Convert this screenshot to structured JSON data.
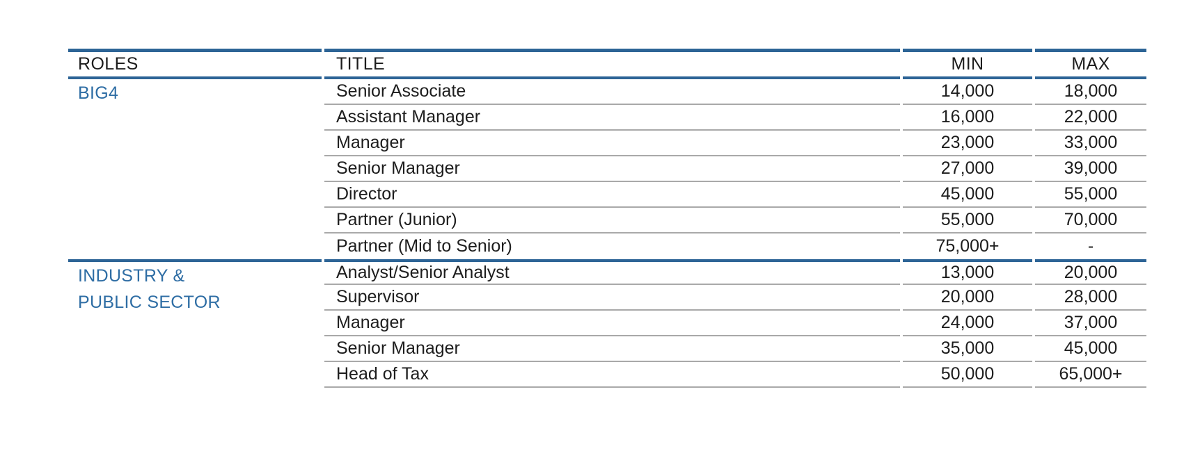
{
  "colors": {
    "background": "#ffffff",
    "accent_blue": "#2d6496",
    "section_label_blue": "#2e6da4",
    "row_line_gray": "#a9a9a9",
    "text": "#1d1d1d"
  },
  "table": {
    "headers": {
      "roles": "ROLES",
      "title": "TITLE",
      "min": "MIN",
      "max": "MAX"
    },
    "sections": [
      {
        "role_lines": [
          "BIG4"
        ],
        "rows": [
          {
            "title": "Senior Associate",
            "min": "14,000",
            "max": "18,000"
          },
          {
            "title": "Assistant Manager",
            "min": "16,000",
            "max": "22,000"
          },
          {
            "title": "Manager",
            "min": "23,000",
            "max": "33,000"
          },
          {
            "title": "Senior Manager",
            "min": "27,000",
            "max": "39,000"
          },
          {
            "title": "Director",
            "min": "45,000",
            "max": "55,000"
          },
          {
            "title": "Partner (Junior)",
            "min": "55,000",
            "max": "70,000"
          },
          {
            "title": "Partner (Mid to Senior)",
            "min": "75,000+",
            "max": "-"
          }
        ]
      },
      {
        "role_lines": [
          "INDUSTRY &",
          "PUBLIC SECTOR"
        ],
        "rows": [
          {
            "title": "Analyst/Senior Analyst",
            "min": "13,000",
            "max": "20,000"
          },
          {
            "title": "Supervisor",
            "min": "20,000",
            "max": "28,000"
          },
          {
            "title": "Manager",
            "min": "24,000",
            "max": "37,000"
          },
          {
            "title": "Senior Manager",
            "min": "35,000",
            "max": "45,000"
          },
          {
            "title": "Head of Tax",
            "min": "50,000",
            "max": "65,000+"
          }
        ]
      }
    ]
  }
}
